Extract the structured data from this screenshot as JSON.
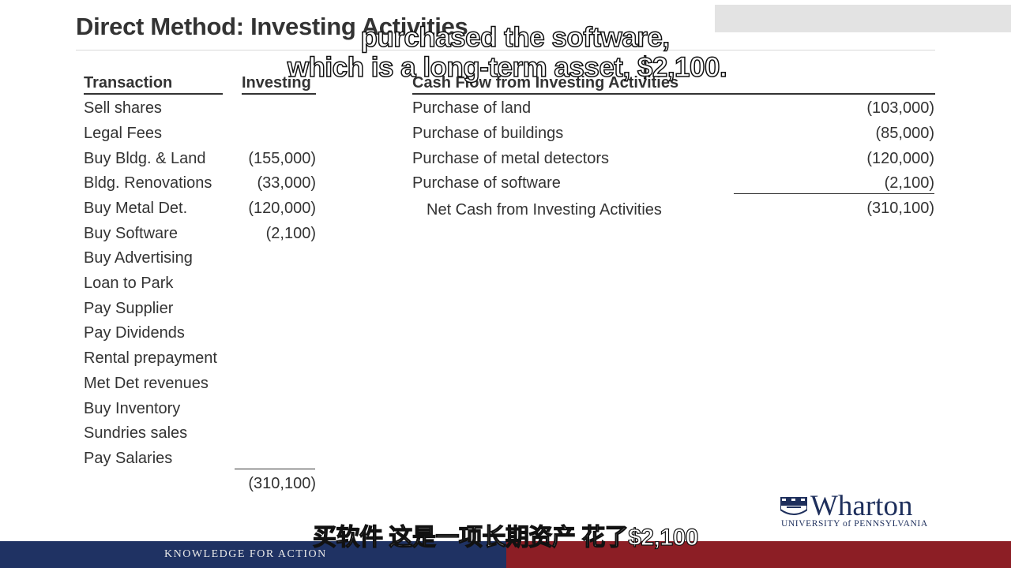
{
  "slide_title": "Direct Method: Investing Activities",
  "left_table": {
    "col_transaction": "Transaction",
    "col_investing": "Investing",
    "rows": [
      {
        "label": "Sell shares",
        "value": ""
      },
      {
        "label": "Legal Fees",
        "value": ""
      },
      {
        "label": "Buy Bldg. & Land",
        "value": "(155,000)"
      },
      {
        "label": "Bldg. Renovations",
        "value": "(33,000)"
      },
      {
        "label": "Buy Metal Det.",
        "value": "(120,000)"
      },
      {
        "label": "Buy Software",
        "value": "(2,100)"
      },
      {
        "label": "Buy Advertising",
        "value": ""
      },
      {
        "label": "Loan to Park",
        "value": ""
      },
      {
        "label": "Pay Supplier",
        "value": ""
      },
      {
        "label": "Pay Dividends",
        "value": ""
      },
      {
        "label": "Rental prepayment",
        "value": ""
      },
      {
        "label": "Met Det revenues",
        "value": ""
      },
      {
        "label": "Buy Inventory",
        "value": ""
      },
      {
        "label": "Sundries sales",
        "value": ""
      },
      {
        "label": "Pay Salaries",
        "value": ""
      }
    ],
    "total": "(310,100)"
  },
  "right_table": {
    "header": "Cash Flow from Investing Activities",
    "rows": [
      {
        "label": "Purchase of land",
        "value": "(103,000)"
      },
      {
        "label": "Purchase of buildings",
        "value": "(85,000)"
      },
      {
        "label": "Purchase of metal detectors",
        "value": "(120,000)"
      },
      {
        "label": "Purchase of software",
        "value": "(2,100)"
      }
    ],
    "net_label": "Net Cash from Investing Activities",
    "net_value": "(310,100)"
  },
  "subtitles": {
    "en_line1": "purchased the software,",
    "en_line2": "which is a long-term asset, $2,100.",
    "zh": "买软件 这是一项长期资产 花了$2,100"
  },
  "logo": {
    "word": "Wharton",
    "sub": "UNIVERSITY of PENNSYLVANIA"
  },
  "footer": {
    "tagline": "KNOWLEDGE FOR ACTION"
  },
  "colors": {
    "footer_blue": "#1f3263",
    "footer_red": "#8c1e25",
    "logo_navy": "#1e2f5c"
  }
}
